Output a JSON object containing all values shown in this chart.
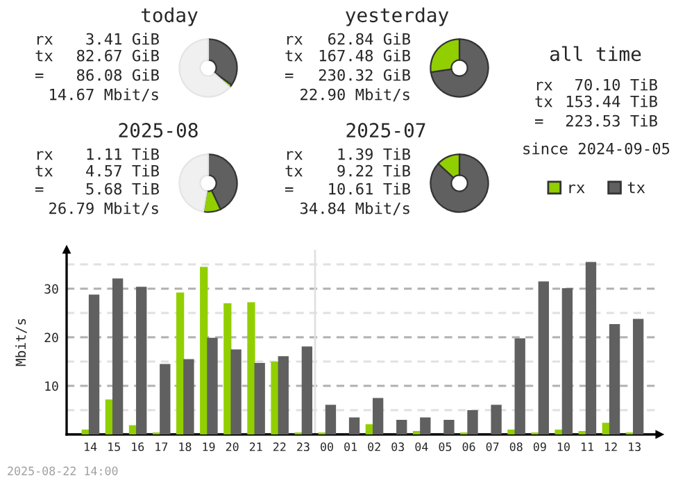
{
  "chart_data": [
    {
      "type": "donut",
      "title": "today",
      "categories": [
        null,
        null,
        null
      ],
      "values": [
        35,
        1.5,
        63.5
      ],
      "colors": [
        "#606060",
        "#91cf00",
        "#f0f0f0"
      ],
      "annotations": [
        "rx",
        "3.41 GiB",
        "tx",
        "82.67 GiB",
        "=",
        "86.08 GiB",
        "14.67 Mbit/s"
      ]
    },
    {
      "type": "donut",
      "title": "yesterday",
      "categories": [
        null,
        null
      ],
      "values": [
        72.7,
        27.3
      ],
      "colors": [
        "#606060",
        "#91cf00"
      ],
      "annotations": [
        "rx",
        "62.84 GiB",
        "tx",
        "167.48 GiB",
        "=",
        "230.32 GiB",
        "22.90 Mbit/s"
      ]
    },
    {
      "type": "donut",
      "title": "2025-08",
      "categories": [
        null,
        null,
        null
      ],
      "values": [
        43,
        9.7,
        47.3
      ],
      "colors": [
        "#606060",
        "#91cf00",
        "#f0f0f0"
      ],
      "annotations": [
        "rx",
        "1.11 TiB",
        "tx",
        "4.57 TiB",
        "=",
        "5.68 TiB",
        "26.79 Mbit/s"
      ]
    },
    {
      "type": "donut",
      "title": "2025-07",
      "categories": [
        null,
        null
      ],
      "values": [
        86.9,
        13.1
      ],
      "colors": [
        "#606060",
        "#91cf00"
      ],
      "annotations": [
        "rx",
        "1.39 TiB",
        "tx",
        "9.22 TiB",
        "=",
        "10.61 TiB",
        "34.84 Mbit/s"
      ]
    },
    {
      "type": "other",
      "title": "all time",
      "annotations": [
        "rx",
        "70.10 TiB",
        "tx",
        "153.44 TiB",
        "=",
        "223.53 TiB",
        "since 2024-09-05"
      ]
    },
    {
      "type": "bar",
      "ylabel": "Mbit/s",
      "legend": "top right",
      "grid": "y",
      "ylim": [
        0,
        38
      ],
      "yticks": [
        {
          "value": 5,
          "label": null
        },
        10,
        {
          "value": 15,
          "label": null
        },
        20,
        {
          "value": 25,
          "label": null
        },
        30,
        {
          "value": 35,
          "label": null
        }
      ],
      "categories": [
        "14",
        "15",
        "16",
        "17",
        "18",
        "19",
        "20",
        "21",
        "22",
        "23",
        "00",
        "01",
        "02",
        "03",
        "04",
        "05",
        "06",
        "07",
        "08",
        "09",
        "10",
        "11",
        "12",
        "13"
      ],
      "ref_lines": [
        {
          "axis": "x",
          "value": "00",
          "color": "#e0e0e0"
        }
      ],
      "annotations": [
        "2025-08-22 14:00"
      ],
      "series": [
        {
          "name": "rx",
          "color": "#91cf00",
          "values": [
            1.0,
            7.2,
            1.9,
            0.4,
            29.2,
            34.5,
            27.0,
            27.2,
            15.0,
            0.4,
            0.4,
            0,
            2.1,
            0,
            0.7,
            0,
            0.4,
            0,
            1.0,
            0.4,
            1.0,
            0.7,
            2.4,
            0.4
          ]
        },
        {
          "name": "tx",
          "color": "#606060",
          "values": [
            28.8,
            32.1,
            30.4,
            14.5,
            15.5,
            19.9,
            17.5,
            14.7,
            16.1,
            18.1,
            6.1,
            3.5,
            7.5,
            3.0,
            3.5,
            3.0,
            5.0,
            6.1,
            19.8,
            31.5,
            30.1,
            35.5,
            22.7,
            23.8
          ]
        }
      ]
    }
  ]
}
